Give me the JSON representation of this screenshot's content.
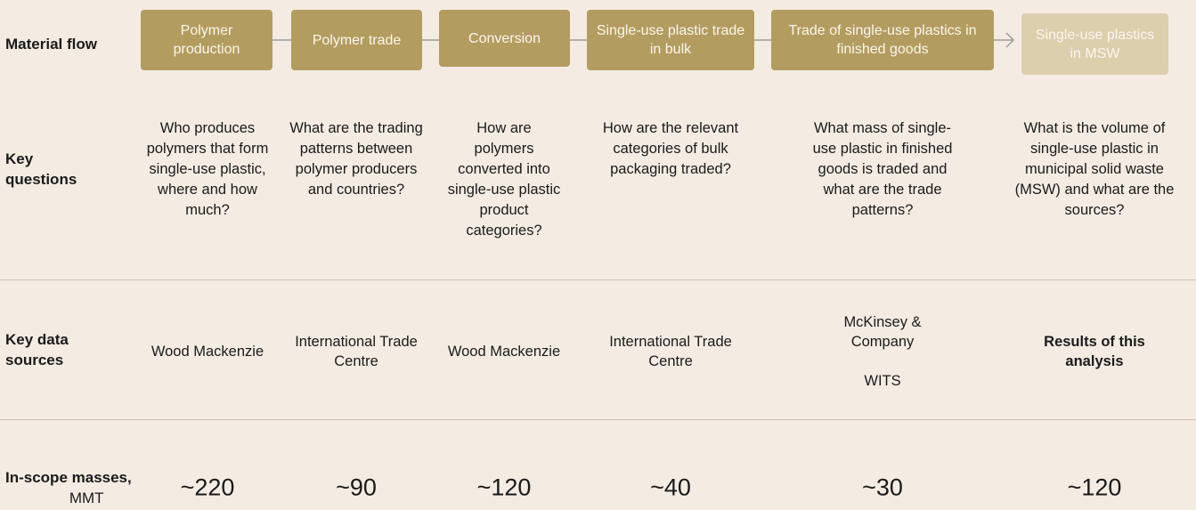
{
  "row_labels": {
    "material_flow": "Material flow",
    "key_questions": "Key questions",
    "key_data_sources": "Key data sources",
    "in_scope_masses": "In-scope masses,",
    "in_scope_unit": "MMT"
  },
  "columns": [
    {
      "stage": "Polymer production",
      "question": "Who produces polymers that form single-use plastic, where and how much?",
      "sources": [
        "Wood Mackenzie"
      ],
      "mass": "~220"
    },
    {
      "stage": "Polymer trade",
      "question": "What are the trading patterns between polymer producers and countries?",
      "sources": [
        "International Trade Centre"
      ],
      "mass": "~90"
    },
    {
      "stage": "Conversion",
      "question": "How are polymers converted into single-use plastic product categories?",
      "sources": [
        "Wood Mackenzie"
      ],
      "mass": "~120"
    },
    {
      "stage": "Single-use plastic trade in bulk",
      "question": "How are the relevant categories of bulk packaging traded?",
      "sources": [
        "International Trade Centre"
      ],
      "mass": "~40"
    },
    {
      "stage": "Trade of single-use plastics in finished goods",
      "question": "What mass of single-use plastic in finished goods is traded and what are the trade patterns?",
      "sources": [
        "McKinsey & Company",
        "WITS"
      ],
      "mass": "~30"
    },
    {
      "stage": "Single-use plastics in MSW",
      "question": "What is the volume of single-use plastic in municipal solid waste (MSW) and what are the sources?",
      "sources": [
        "Results of this analysis"
      ],
      "mass": "~120"
    }
  ]
}
